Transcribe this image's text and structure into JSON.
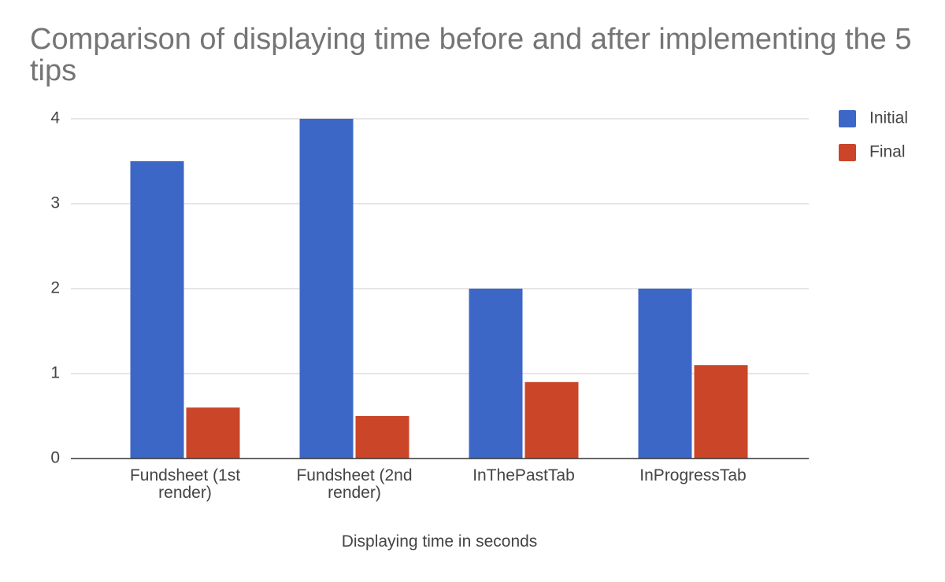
{
  "chart_data": {
    "type": "bar",
    "title": "Comparison of displaying time before and after implementing the 5 tips",
    "x_label": "Displaying time in seconds",
    "categories": [
      "Fundsheet (1st render)",
      "Fundsheet (2nd render)",
      "InThePastTab",
      "InProgressTab"
    ],
    "series": [
      {
        "name": "Initial",
        "color": "#3d67c6",
        "values": [
          3.5,
          4,
          2,
          2
        ]
      },
      {
        "name": "Final",
        "color": "#cb4528",
        "values": [
          0.6,
          0.5,
          0.9,
          1.1
        ]
      }
    ],
    "ylim": [
      0,
      4
    ],
    "yticks": [
      0,
      1,
      2,
      3,
      4
    ],
    "grid": true,
    "legend": "right"
  }
}
